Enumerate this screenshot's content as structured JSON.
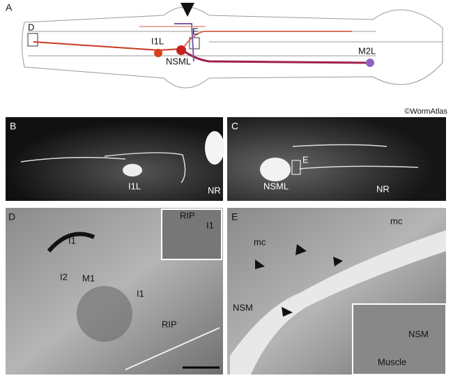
{
  "credit": "©WormAtlas",
  "panels": [
    {
      "letter": "A",
      "labels": [
        "D",
        "E",
        "I1L",
        "NSML",
        "M2L"
      ]
    },
    {
      "letter": "B",
      "labels": [
        "I1L",
        "NR"
      ]
    },
    {
      "letter": "C",
      "labels": [
        "E",
        "NSML",
        "NR"
      ]
    },
    {
      "letter": "D",
      "labels": [
        "I1",
        "I2",
        "M1",
        "I1",
        "RIP",
        "RIP",
        "I1"
      ]
    },
    {
      "letter": "E",
      "labels": [
        "mc",
        "mc",
        "NSM",
        "NSM",
        "Muscle"
      ]
    }
  ]
}
